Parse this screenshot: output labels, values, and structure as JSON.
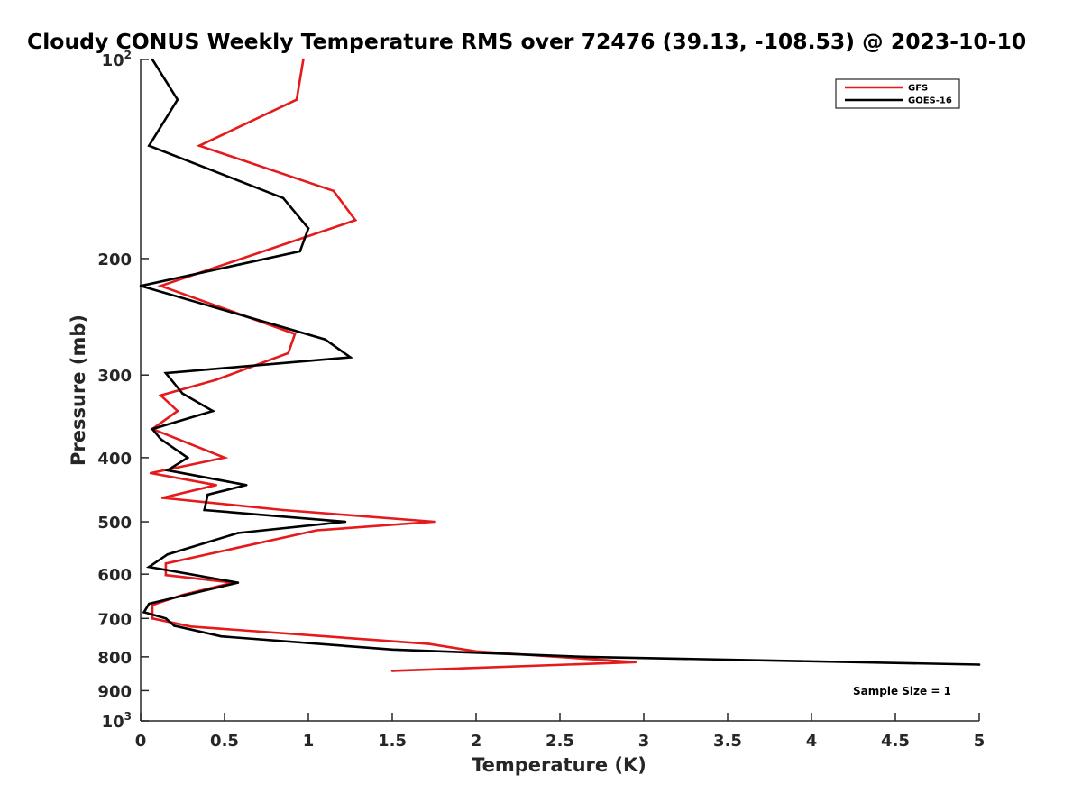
{
  "chart_data": {
    "type": "line",
    "title": "Cloudy CONUS Weekly Temperature RMS over 72476 (39.13, -108.53) @ 2023-10-10",
    "xlabel": "Temperature (K)",
    "ylabel": "Pressure (mb)",
    "xlim": [
      0,
      5
    ],
    "ylim": [
      100,
      1000
    ],
    "y_scale": "log",
    "y_reversed": true,
    "grid": false,
    "legend_position": "top-right",
    "x_ticks": [
      "0",
      "0.5",
      "1",
      "1.5",
      "2",
      "2.5",
      "3",
      "3.5",
      "4",
      "4.5",
      "5"
    ],
    "x_tick_values": [
      0,
      0.5,
      1,
      1.5,
      2,
      2.5,
      3,
      3.5,
      4,
      4.5,
      5
    ],
    "y_tick_values": [
      100,
      200,
      300,
      400,
      500,
      600,
      700,
      800,
      900,
      1000
    ],
    "y_ticks": [
      {
        "base": "10",
        "exp": "2"
      },
      {
        "base": "200",
        "exp": ""
      },
      {
        "base": "300",
        "exp": ""
      },
      {
        "base": "400",
        "exp": ""
      },
      {
        "base": "500",
        "exp": ""
      },
      {
        "base": "600",
        "exp": ""
      },
      {
        "base": "700",
        "exp": ""
      },
      {
        "base": "800",
        "exp": ""
      },
      {
        "base": "900",
        "exp": ""
      },
      {
        "base": "10",
        "exp": "3"
      }
    ],
    "annotation": "Sample Size = 1",
    "series": [
      {
        "name": "GFS",
        "color": "#e41a1c",
        "points": [
          [
            0.97,
            100
          ],
          [
            0.93,
            115
          ],
          [
            0.35,
            135
          ],
          [
            1.15,
            158
          ],
          [
            1.28,
            175
          ],
          [
            0.12,
            220
          ],
          [
            0.92,
            260
          ],
          [
            0.88,
            278
          ],
          [
            0.45,
            305
          ],
          [
            0.12,
            322
          ],
          [
            0.22,
            340
          ],
          [
            0.07,
            362
          ],
          [
            0.5,
            400
          ],
          [
            0.06,
            422
          ],
          [
            0.45,
            440
          ],
          [
            0.13,
            460
          ],
          [
            0.85,
            480
          ],
          [
            1.75,
            500
          ],
          [
            1.05,
            515
          ],
          [
            0.15,
            578
          ],
          [
            0.15,
            602
          ],
          [
            0.55,
            618
          ],
          [
            0.25,
            645
          ],
          [
            0.07,
            668
          ],
          [
            0.07,
            700
          ],
          [
            0.3,
            720
          ],
          [
            1.72,
            765
          ],
          [
            2.0,
            785
          ],
          [
            2.95,
            815
          ],
          [
            1.5,
            840
          ]
        ]
      },
      {
        "name": "GOES-16",
        "color": "#000000",
        "points": [
          [
            0.07,
            100
          ],
          [
            0.22,
            115
          ],
          [
            0.05,
            135
          ],
          [
            0.85,
            162
          ],
          [
            1.0,
            180
          ],
          [
            0.95,
            195
          ],
          [
            0.0,
            220
          ],
          [
            1.1,
            265
          ],
          [
            1.25,
            282
          ],
          [
            0.15,
            298
          ],
          [
            0.25,
            320
          ],
          [
            0.43,
            340
          ],
          [
            0.07,
            362
          ],
          [
            0.12,
            375
          ],
          [
            0.28,
            400
          ],
          [
            0.16,
            418
          ],
          [
            0.63,
            440
          ],
          [
            0.4,
            455
          ],
          [
            0.38,
            480
          ],
          [
            1.22,
            500
          ],
          [
            0.58,
            520
          ],
          [
            0.16,
            560
          ],
          [
            0.05,
            585
          ],
          [
            0.58,
            618
          ],
          [
            0.05,
            665
          ],
          [
            0.02,
            685
          ],
          [
            0.15,
            700
          ],
          [
            0.2,
            718
          ],
          [
            0.48,
            745
          ],
          [
            1.5,
            780
          ],
          [
            2.65,
            800
          ],
          [
            5.0,
            822
          ]
        ]
      }
    ]
  }
}
